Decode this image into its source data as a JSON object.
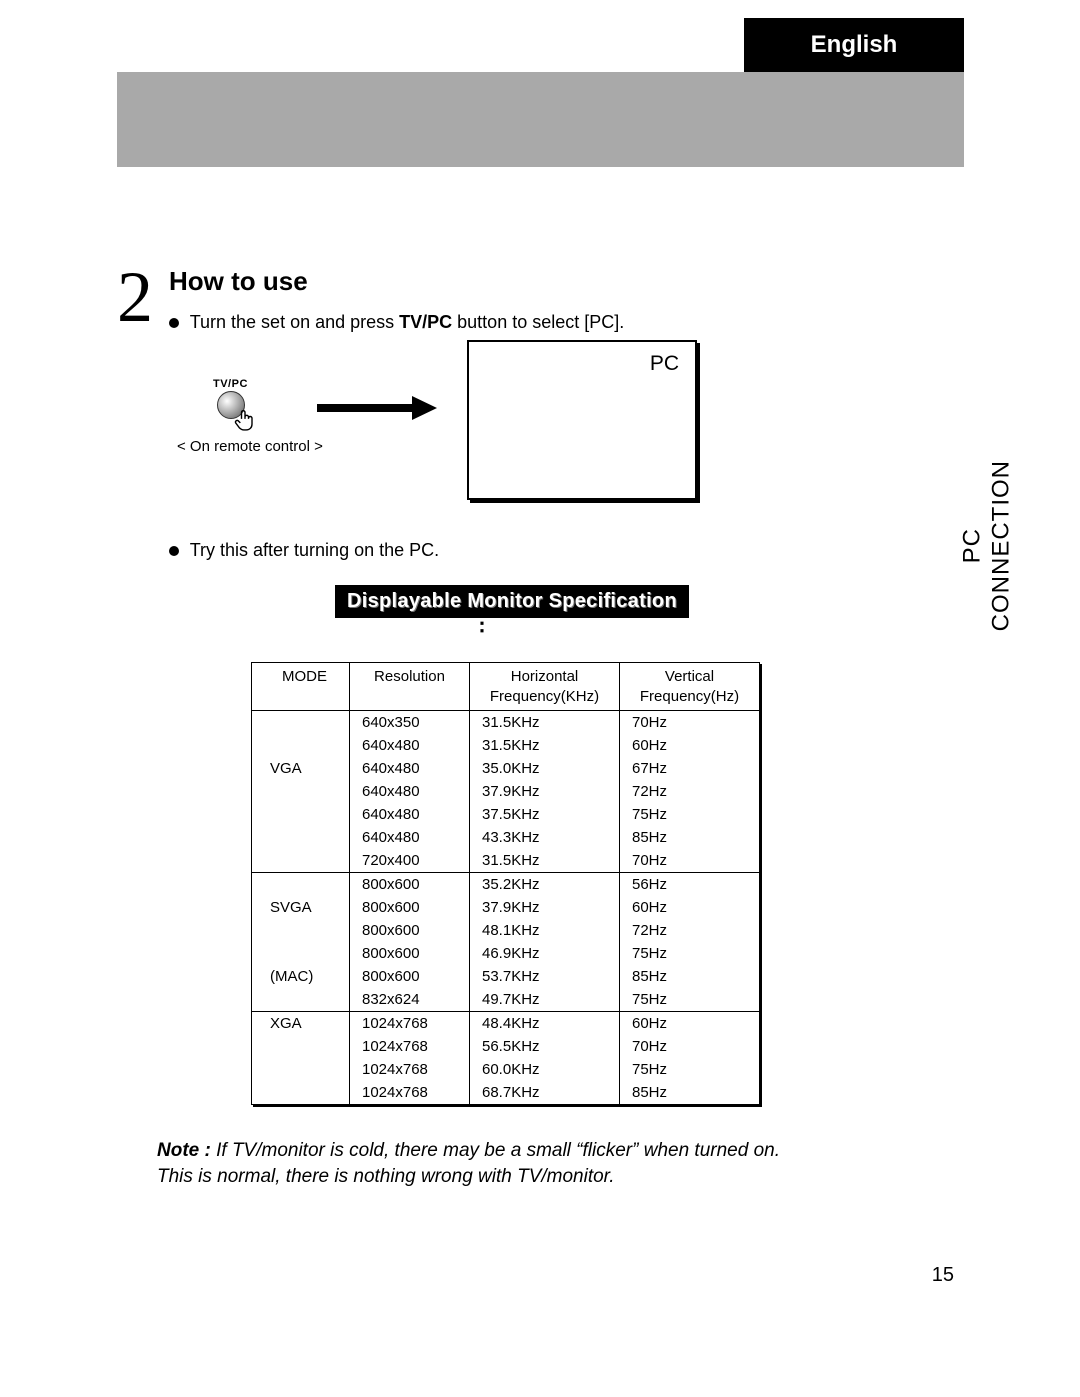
{
  "header": {
    "language_tab": "English"
  },
  "section": {
    "number": "2",
    "title": "How to use",
    "bullet1_pre": "Turn the set on and press ",
    "bullet1_bold": "TV/PC",
    "bullet1_post": " button to select [PC].",
    "bullet2": "Try this after turning on the PC."
  },
  "diagram": {
    "button_label": "TV/PC",
    "remote_caption": "< On remote control >",
    "screen_text": "PC"
  },
  "side_label": {
    "line1": "PC",
    "line2": "CONNECTION"
  },
  "spec_heading": "Displayable Monitor Specification",
  "table": {
    "columns": [
      "MODE",
      "Resolution",
      "Horizontal\nFrequency(KHz)",
      "Vertical\nFrequency(Hz)"
    ],
    "groups": [
      {
        "mode_labels": [
          "",
          "",
          "VGA",
          "",
          "",
          "",
          ""
        ],
        "rows": [
          [
            "640x350",
            "31.5KHz",
            "70Hz"
          ],
          [
            "640x480",
            "31.5KHz",
            "60Hz"
          ],
          [
            "640x480",
            "35.0KHz",
            "67Hz"
          ],
          [
            "640x480",
            "37.9KHz",
            "72Hz"
          ],
          [
            "640x480",
            "37.5KHz",
            "75Hz"
          ],
          [
            "640x480",
            "43.3KHz",
            "85Hz"
          ],
          [
            "720x400",
            "31.5KHz",
            "70Hz"
          ]
        ]
      },
      {
        "mode_labels": [
          "",
          "SVGA",
          "",
          "",
          "(MAC)",
          ""
        ],
        "rows": [
          [
            "800x600",
            "35.2KHz",
            "56Hz"
          ],
          [
            "800x600",
            "37.9KHz",
            "60Hz"
          ],
          [
            "800x600",
            "48.1KHz",
            "72Hz"
          ],
          [
            "800x600",
            "46.9KHz",
            "75Hz"
          ],
          [
            "800x600",
            "53.7KHz",
            "85Hz"
          ],
          [
            "832x624",
            "49.7KHz",
            "75Hz"
          ]
        ]
      },
      {
        "mode_labels": [
          "XGA",
          "",
          "",
          ""
        ],
        "rows": [
          [
            "1024x768",
            "48.4KHz",
            "60Hz"
          ],
          [
            "1024x768",
            "56.5KHz",
            "70Hz"
          ],
          [
            "1024x768",
            "60.0KHz",
            "75Hz"
          ],
          [
            "1024x768",
            "68.7KHz",
            "85Hz"
          ]
        ]
      }
    ]
  },
  "note": {
    "label": "Note :",
    "line1": " If TV/monitor is cold, there may be a small “flicker” when turned on.",
    "line2": "This is normal, there is nothing wrong with TV/monitor."
  },
  "page_number": "15"
}
